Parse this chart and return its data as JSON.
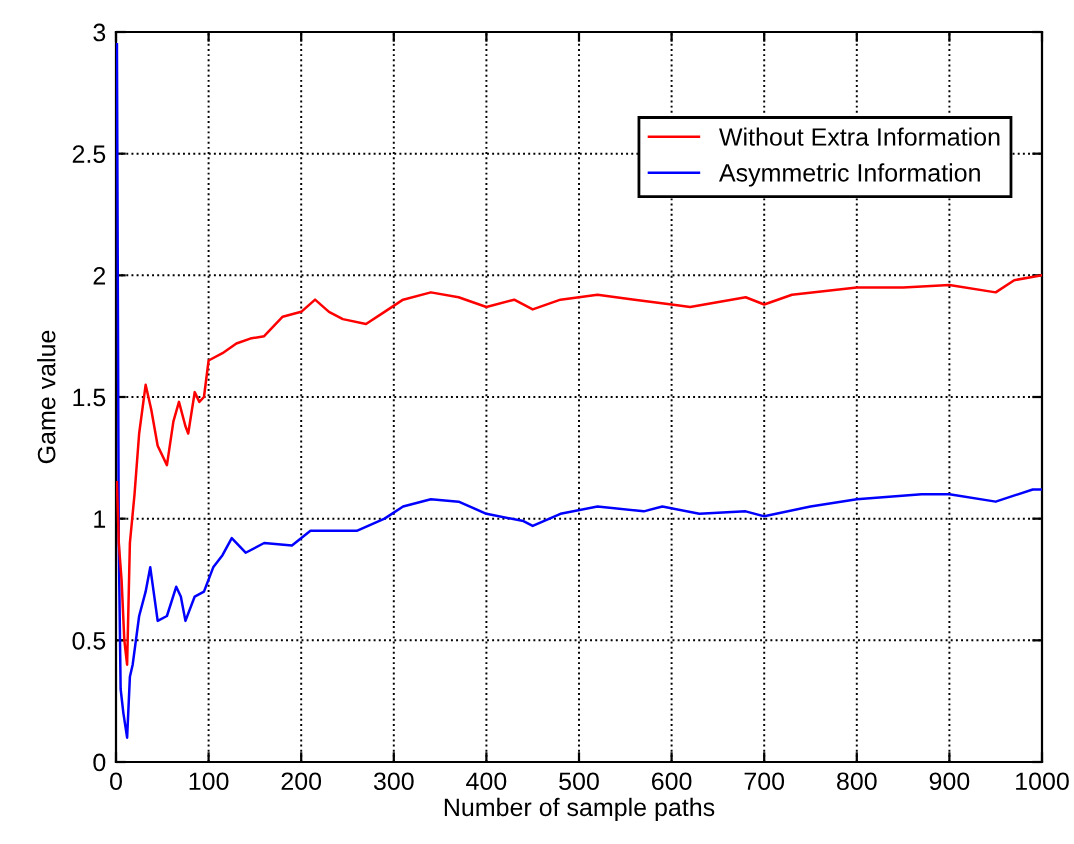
{
  "chart_data": {
    "type": "line",
    "xlabel": "Number of sample paths",
    "ylabel": "Game value",
    "xlim": [
      0,
      1000
    ],
    "ylim": [
      0,
      3
    ],
    "xticks": [
      0,
      100,
      200,
      300,
      400,
      500,
      600,
      700,
      800,
      900,
      1000
    ],
    "yticks": [
      0,
      0.5,
      1,
      {
        "value": 1.5,
        "label": "1.5"
      },
      2,
      2.5,
      3
    ],
    "grid": true,
    "legend": "top right",
    "line_style": "solid",
    "marker": "none",
    "series": [
      {
        "name": "Without Extra Information",
        "color": "#ff0000",
        "x": [
          1,
          3,
          6,
          9,
          12,
          15,
          20,
          25,
          32,
          38,
          45,
          55,
          62,
          68,
          75,
          78,
          85,
          90,
          95,
          100,
          115,
          130,
          145,
          160,
          180,
          200,
          215,
          230,
          245,
          270,
          290,
          310,
          340,
          370,
          400,
          430,
          450,
          480,
          520,
          560,
          600,
          620,
          680,
          700,
          730,
          800,
          850,
          900,
          950,
          970,
          1000
        ],
        "values": [
          1.15,
          0.9,
          0.75,
          0.5,
          0.4,
          0.9,
          1.1,
          1.35,
          1.55,
          1.45,
          1.3,
          1.22,
          1.4,
          1.48,
          1.38,
          1.35,
          1.52,
          1.48,
          1.5,
          1.65,
          1.68,
          1.72,
          1.74,
          1.75,
          1.83,
          1.85,
          1.9,
          1.85,
          1.82,
          1.8,
          1.85,
          1.9,
          1.93,
          1.91,
          1.87,
          1.9,
          1.86,
          1.9,
          1.92,
          1.9,
          1.88,
          1.87,
          1.91,
          1.88,
          1.92,
          1.95,
          1.95,
          1.96,
          1.93,
          1.98,
          2.0
        ]
      },
      {
        "name": "Asymmetric Information",
        "color": "#0000ff",
        "x": [
          1,
          3,
          5,
          8,
          12,
          15,
          18,
          25,
          32,
          37,
          45,
          55,
          65,
          70,
          75,
          85,
          95,
          105,
          115,
          125,
          140,
          160,
          190,
          210,
          260,
          290,
          310,
          340,
          370,
          400,
          440,
          450,
          480,
          520,
          570,
          590,
          630,
          680,
          700,
          750,
          800,
          870,
          900,
          950,
          990,
          1000
        ],
        "values": [
          2.95,
          0.9,
          0.3,
          0.2,
          0.1,
          0.35,
          0.4,
          0.6,
          0.7,
          0.8,
          0.58,
          0.6,
          0.72,
          0.68,
          0.58,
          0.68,
          0.7,
          0.8,
          0.85,
          0.92,
          0.86,
          0.9,
          0.89,
          0.95,
          0.95,
          1.0,
          1.05,
          1.08,
          1.07,
          1.02,
          0.99,
          0.97,
          1.02,
          1.05,
          1.03,
          1.05,
          1.02,
          1.03,
          1.01,
          1.05,
          1.08,
          1.1,
          1.1,
          1.07,
          1.12,
          1.12
        ]
      }
    ]
  }
}
